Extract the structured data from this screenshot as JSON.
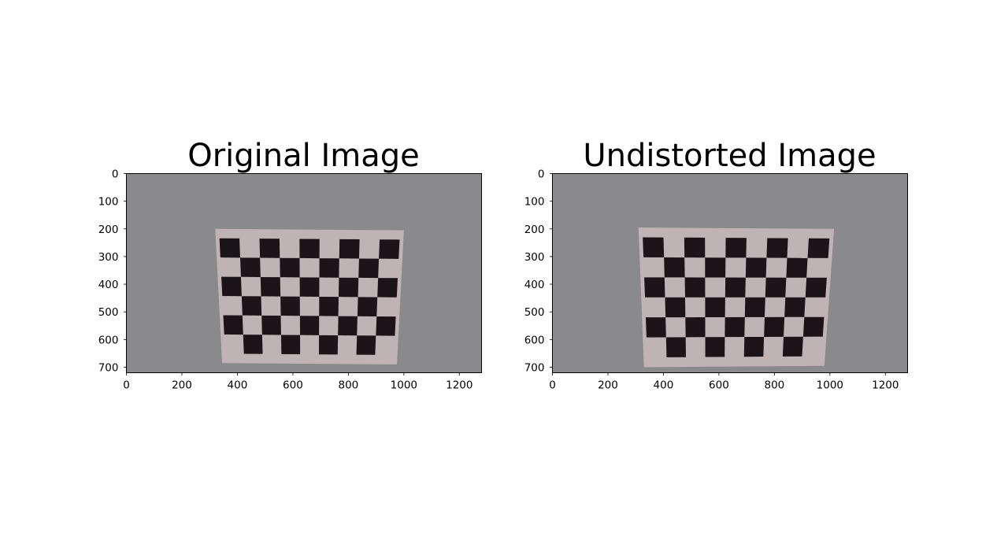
{
  "chart_data": [
    {
      "type": "image",
      "title": "Original Image",
      "x_ticks": [
        0,
        200,
        400,
        600,
        800,
        1000,
        1200
      ],
      "y_ticks": [
        0,
        100,
        200,
        300,
        400,
        500,
        600,
        700
      ],
      "xlim": [
        0,
        1280
      ],
      "ylim": [
        720,
        0
      ],
      "image_content": "photo of a checkerboard calibration pattern on a gray wall",
      "board_corners": [
        [
          320,
          200
        ],
        [
          1000,
          205
        ],
        [
          975,
          690
        ],
        [
          345,
          685
        ]
      ],
      "board_grid": {
        "cols": 9,
        "rows": 6
      }
    },
    {
      "type": "image",
      "title": "Undistorted Image",
      "x_ticks": [
        0,
        200,
        400,
        600,
        800,
        1000,
        1200
      ],
      "y_ticks": [
        0,
        100,
        200,
        300,
        400,
        500,
        600,
        700
      ],
      "xlim": [
        0,
        1280
      ],
      "ylim": [
        720,
        0
      ],
      "image_content": "undistorted photo of a checkerboard calibration pattern on a gray wall",
      "board_corners": [
        [
          310,
          195
        ],
        [
          1015,
          200
        ],
        [
          980,
          695
        ],
        [
          330,
          700
        ]
      ],
      "board_grid": {
        "cols": 9,
        "rows": 6
      }
    }
  ],
  "colors": {
    "background": "#ffffff",
    "wall": "#8a898b",
    "paper": "#bfb3b6",
    "square": "#1c1418"
  }
}
